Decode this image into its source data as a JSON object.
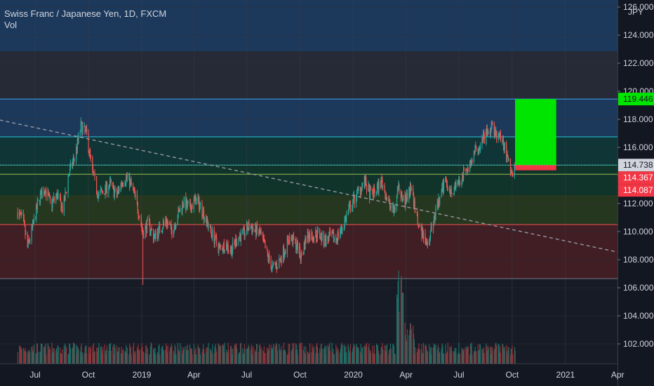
{
  "chart_data": {
    "type": "candlestick",
    "title": "Swiss Franc / Japanese Yen, 1D, FXCM",
    "indicator": "Vol",
    "currency": "JPY",
    "ylim": [
      100.6,
      126.5
    ],
    "y_ticks": [
      "102.000",
      "104.000",
      "106.000",
      "108.000",
      "110.000",
      "112.000",
      "114.000",
      "116.000",
      "118.000",
      "120.000",
      "122.000",
      "124.000",
      "126.000"
    ],
    "x_ticks": [
      "Jul",
      "Oct",
      "2019",
      "Apr",
      "Jul",
      "Oct",
      "2020",
      "Apr",
      "Jul",
      "Oct",
      "2021",
      "Apr"
    ],
    "price_path": [
      [
        "2018-06-01",
        111.4
      ],
      [
        "2018-06-10",
        110.8
      ],
      [
        "2018-06-18",
        108.9
      ],
      [
        "2018-06-28",
        110.5
      ],
      [
        "2018-07-08",
        112.4
      ],
      [
        "2018-07-18",
        113.1
      ],
      [
        "2018-07-28",
        111.9
      ],
      [
        "2018-08-08",
        112.6
      ],
      [
        "2018-08-18",
        111.5
      ],
      [
        "2018-08-28",
        114.1
      ],
      [
        "2018-09-08",
        115.4
      ],
      [
        "2018-09-18",
        117.5
      ],
      [
        "2018-09-28",
        116.9
      ],
      [
        "2018-10-08",
        114.2
      ],
      [
        "2018-10-18",
        112.6
      ],
      [
        "2018-10-28",
        112.9
      ],
      [
        "2018-11-08",
        113.4
      ],
      [
        "2018-11-18",
        112.5
      ],
      [
        "2018-11-28",
        113.6
      ],
      [
        "2018-12-08",
        113.9
      ],
      [
        "2018-12-18",
        112.8
      ],
      [
        "2018-12-28",
        111.2
      ],
      [
        "2019-01-03",
        109.9
      ],
      [
        "2019-01-12",
        110.6
      ],
      [
        "2019-01-22",
        109.6
      ],
      [
        "2019-02-01",
        110.2
      ],
      [
        "2019-02-12",
        110.8
      ],
      [
        "2019-02-22",
        110.0
      ],
      [
        "2019-03-04",
        111.2
      ],
      [
        "2019-03-14",
        112.1
      ],
      [
        "2019-03-24",
        111.6
      ],
      [
        "2019-04-04",
        112.3
      ],
      [
        "2019-04-14",
        111.7
      ],
      [
        "2019-04-24",
        110.6
      ],
      [
        "2019-05-05",
        109.6
      ],
      [
        "2019-05-15",
        108.8
      ],
      [
        "2019-05-25",
        109.1
      ],
      [
        "2019-06-05",
        108.7
      ],
      [
        "2019-06-15",
        109.6
      ],
      [
        "2019-06-25",
        109.8
      ],
      [
        "2019-07-05",
        110.4
      ],
      [
        "2019-07-15",
        110.1
      ],
      [
        "2019-07-25",
        109.8
      ],
      [
        "2019-08-04",
        108.5
      ],
      [
        "2019-08-14",
        107.4
      ],
      [
        "2019-08-24",
        107.7
      ],
      [
        "2019-09-04",
        108.7
      ],
      [
        "2019-09-14",
        109.6
      ],
      [
        "2019-09-24",
        109.1
      ],
      [
        "2019-10-03",
        108.2
      ],
      [
        "2019-10-13",
        109.8
      ],
      [
        "2019-10-23",
        109.7
      ],
      [
        "2019-11-02",
        109.9
      ],
      [
        "2019-11-12",
        109.3
      ],
      [
        "2019-11-22",
        109.6
      ],
      [
        "2019-12-02",
        109.5
      ],
      [
        "2019-12-12",
        110.2
      ],
      [
        "2019-12-22",
        111.3
      ],
      [
        "2020-01-01",
        112.2
      ],
      [
        "2020-01-10",
        112.9
      ],
      [
        "2020-01-20",
        113.6
      ],
      [
        "2020-01-30",
        112.6
      ],
      [
        "2020-02-09",
        112.9
      ],
      [
        "2020-02-19",
        113.6
      ],
      [
        "2020-02-29",
        112.2
      ],
      [
        "2020-03-10",
        111.4
      ],
      [
        "2020-03-20",
        113.2
      ],
      [
        "2020-03-30",
        112.1
      ],
      [
        "2020-04-09",
        113.1
      ],
      [
        "2020-04-19",
        111.1
      ],
      [
        "2020-04-29",
        109.9
      ],
      [
        "2020-05-09",
        109.2
      ],
      [
        "2020-05-19",
        110.9
      ],
      [
        "2020-05-29",
        112.3
      ],
      [
        "2020-06-08",
        113.8
      ],
      [
        "2020-06-18",
        112.8
      ],
      [
        "2020-06-28",
        113.3
      ],
      [
        "2020-07-08",
        113.9
      ],
      [
        "2020-07-18",
        114.7
      ],
      [
        "2020-07-28",
        115.6
      ],
      [
        "2020-08-07",
        116.2
      ],
      [
        "2020-08-17",
        116.9
      ],
      [
        "2020-08-27",
        117.3
      ],
      [
        "2020-09-06",
        116.8
      ],
      [
        "2020-09-16",
        116.4
      ],
      [
        "2020-09-26",
        114.7
      ],
      [
        "2020-10-03",
        114.1
      ],
      [
        "2020-10-06",
        114.6
      ]
    ],
    "volume_spike": [
      "2020-03-16",
      "2020-03-27"
    ],
    "low_wicks": [
      [
        "2019-01-03",
        106.2
      ]
    ],
    "horizontal_levels": [
      {
        "value": 119.446,
        "color": "#42a5f5"
      },
      {
        "value": 116.75,
        "color": "#26c6da"
      },
      {
        "value": 114.738,
        "color": "#26a69a"
      },
      {
        "value": 114.087,
        "color": "#8bc34a"
      },
      {
        "value": 110.5,
        "color": "#ef5350"
      },
      {
        "value": 106.65,
        "color": "#787b86"
      }
    ],
    "zones": [
      {
        "from": 122.85,
        "to": 126.5,
        "color": "#1e3f66"
      },
      {
        "from": 119.446,
        "to": 122.85,
        "color": "#2a2e39"
      },
      {
        "from": 116.75,
        "to": 119.446,
        "color": "#1e3f66"
      },
      {
        "from": 114.738,
        "to": 116.75,
        "color": "#0f3b3b"
      },
      {
        "from": 112.6,
        "to": 114.738,
        "color": "#113a2c"
      },
      {
        "from": 110.5,
        "to": 112.6,
        "color": "#2a3d1f"
      },
      {
        "from": 106.65,
        "to": 110.5,
        "color": "#4a1e24"
      },
      {
        "from": 100.6,
        "to": 106.65,
        "color": "#191c26"
      }
    ],
    "trend_line": {
      "from": [
        "2018-05-01",
        117.95
      ],
      "to": [
        "2021-06-01",
        108.0
      ]
    },
    "position": {
      "start": "2020-10-06",
      "end": "2020-12-16",
      "entry": 114.738,
      "target": 119.446,
      "stop": 114.367
    },
    "price_tags": [
      {
        "label": "119.446",
        "value": 119.446,
        "bg": "#00e500",
        "fg": "#131722",
        "type": "target"
      },
      {
        "label": "114.738",
        "value": 114.738,
        "bg": "#d1d4dc",
        "fg": "#131722",
        "type": "entry"
      },
      {
        "label": "114.367",
        "value": 114.367,
        "bg": "#f23645",
        "fg": "#ffffff",
        "type": "stop"
      },
      {
        "label": "114.087",
        "value": 114.087,
        "bg": "#f23645",
        "fg": "#ffffff",
        "type": "current"
      }
    ],
    "colors": {
      "up": "#26a69a",
      "down": "#ef5350",
      "volume_up": "#1e6f67",
      "volume_down": "#8e3339",
      "profit_zone": "#00e500",
      "loss_zone": "#f23645"
    }
  }
}
